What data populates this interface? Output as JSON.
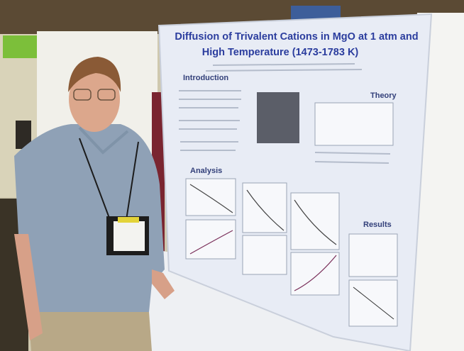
{
  "poster": {
    "title_lines": [
      "Diffusion of Trivalent Cations in MgO at 1 atm and",
      "High Temperature (1473-1783 K)"
    ],
    "sections": [
      "Introduction",
      "Theory",
      "Analysis",
      "Results"
    ]
  }
}
